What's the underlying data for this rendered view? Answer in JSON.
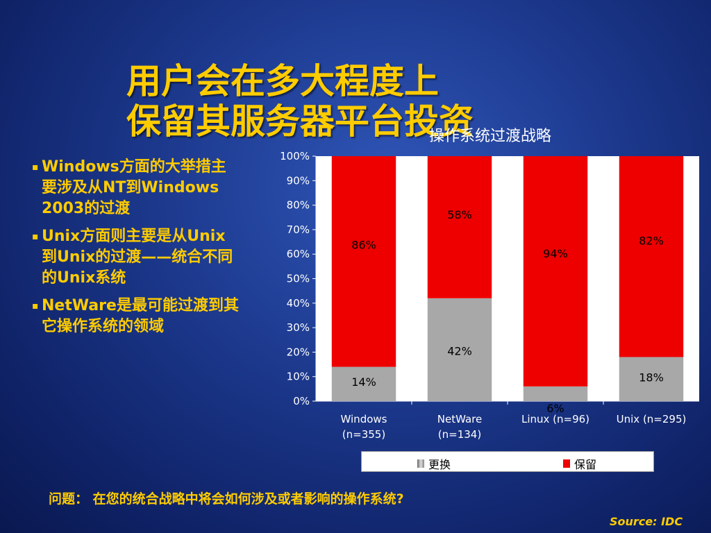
{
  "slide": {
    "title_line1": "用户会在多大程度上",
    "title_line2": "保留其服务器平台投资",
    "bullets": [
      "Windows方面的大举措主要涉及从NT到Windows 2003的过渡",
      "Unix方面则主要是从Unix到Unix的过渡——统合不同的Unix系统",
      "NetWare是最可能过渡到其它操作系统的领域"
    ],
    "bullet_marker": "▪",
    "question": "问题： 在您的统合战略中将会如何涉及或者影响的操作系统?",
    "source": "Source: IDC"
  },
  "chart_data": {
    "type": "bar",
    "stacked": true,
    "percent": true,
    "title": "操作系统过渡战略",
    "categories": [
      [
        "Windows",
        "(n=355)"
      ],
      [
        "NetWare",
        "(n=134)"
      ],
      [
        "Linux  (n=96)"
      ],
      [
        "Unix   (n=295)"
      ]
    ],
    "series": [
      {
        "name": "更换",
        "values": [
          14,
          42,
          6,
          18
        ],
        "color": "#a8a8a8",
        "labels": [
          "14%",
          "42%",
          "6%",
          "18%"
        ]
      },
      {
        "name": "保留",
        "values": [
          86,
          58,
          94,
          82
        ],
        "color": "#ee0000",
        "labels": [
          "86%",
          "58%",
          "94%",
          "82%"
        ]
      }
    ],
    "ylim": [
      0,
      100
    ],
    "yticks": [
      "0%",
      "10%",
      "20%",
      "30%",
      "40%",
      "50%",
      "60%",
      "70%",
      "80%",
      "90%",
      "100%"
    ],
    "legend_position": "bottom",
    "grid": false,
    "colors": {
      "plot_background": "#ffffff",
      "label_text": "#000000"
    }
  }
}
